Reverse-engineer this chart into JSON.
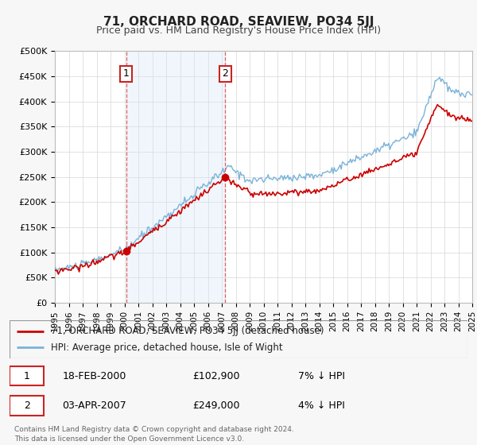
{
  "title": "71, ORCHARD ROAD, SEAVIEW, PO34 5JJ",
  "subtitle": "Price paid vs. HM Land Registry's House Price Index (HPI)",
  "bg_color": "#f7f7f7",
  "plot_bg_color": "#ffffff",
  "grid_color": "#dddddd",
  "shade_color": "#d6e8f7",
  "legend_label_red": "71, ORCHARD ROAD, SEAVIEW, PO34 5JJ (detached house)",
  "legend_label_blue": "HPI: Average price, detached house, Isle of Wight",
  "annotation1_date": "18-FEB-2000",
  "annotation1_price": "£102,900",
  "annotation1_hpi": "7% ↓ HPI",
  "annotation2_date": "03-APR-2007",
  "annotation2_price": "£249,000",
  "annotation2_hpi": "4% ↓ HPI",
  "footnote": "Contains HM Land Registry data © Crown copyright and database right 2024.\nThis data is licensed under the Open Government Licence v3.0.",
  "xmin": 1995,
  "xmax": 2025,
  "ymin": 0,
  "ymax": 500000,
  "yticks": [
    0,
    50000,
    100000,
    150000,
    200000,
    250000,
    300000,
    350000,
    400000,
    450000,
    500000
  ],
  "ytick_labels": [
    "£0",
    "£50K",
    "£100K",
    "£150K",
    "£200K",
    "£250K",
    "£300K",
    "£350K",
    "£400K",
    "£450K",
    "£500K"
  ],
  "sale1_x": 2000.13,
  "sale1_y": 102900,
  "sale2_x": 2007.25,
  "sale2_y": 249000,
  "red_color": "#cc0000",
  "blue_color": "#7ab3d9",
  "vline_color": "#e06060"
}
